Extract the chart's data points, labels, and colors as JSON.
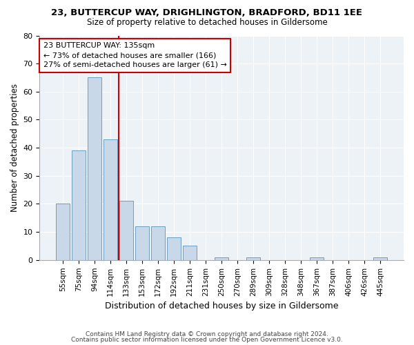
{
  "title1": "23, BUTTERCUP WAY, DRIGHLINGTON, BRADFORD, BD11 1EE",
  "title2": "Size of property relative to detached houses in Gildersome",
  "xlabel": "Distribution of detached houses by size in Gildersome",
  "ylabel": "Number of detached properties",
  "categories": [
    "55sqm",
    "75sqm",
    "94sqm",
    "114sqm",
    "133sqm",
    "153sqm",
    "172sqm",
    "192sqm",
    "211sqm",
    "231sqm",
    "250sqm",
    "270sqm",
    "289sqm",
    "309sqm",
    "328sqm",
    "348sqm",
    "367sqm",
    "387sqm",
    "406sqm",
    "426sqm",
    "445sqm"
  ],
  "values": [
    20,
    39,
    65,
    43,
    21,
    12,
    12,
    8,
    5,
    0,
    1,
    0,
    1,
    0,
    0,
    0,
    1,
    0,
    0,
    0,
    1
  ],
  "bar_color": "#c8d8e8",
  "bar_edge_color": "#6a9ec0",
  "highlight_index": 4,
  "highlight_line_color": "#cc0000",
  "annotation_line1": "23 BUTTERCUP WAY: 135sqm",
  "annotation_line2": "← 73% of detached houses are smaller (166)",
  "annotation_line3": "27% of semi-detached houses are larger (61) →",
  "annotation_box_color": "#cc0000",
  "ylim": [
    0,
    80
  ],
  "yticks": [
    0,
    10,
    20,
    30,
    40,
    50,
    60,
    70,
    80
  ],
  "footer1": "Contains HM Land Registry data © Crown copyright and database right 2024.",
  "footer2": "Contains public sector information licensed under the Open Government Licence v3.0.",
  "background_color": "#edf2f7"
}
